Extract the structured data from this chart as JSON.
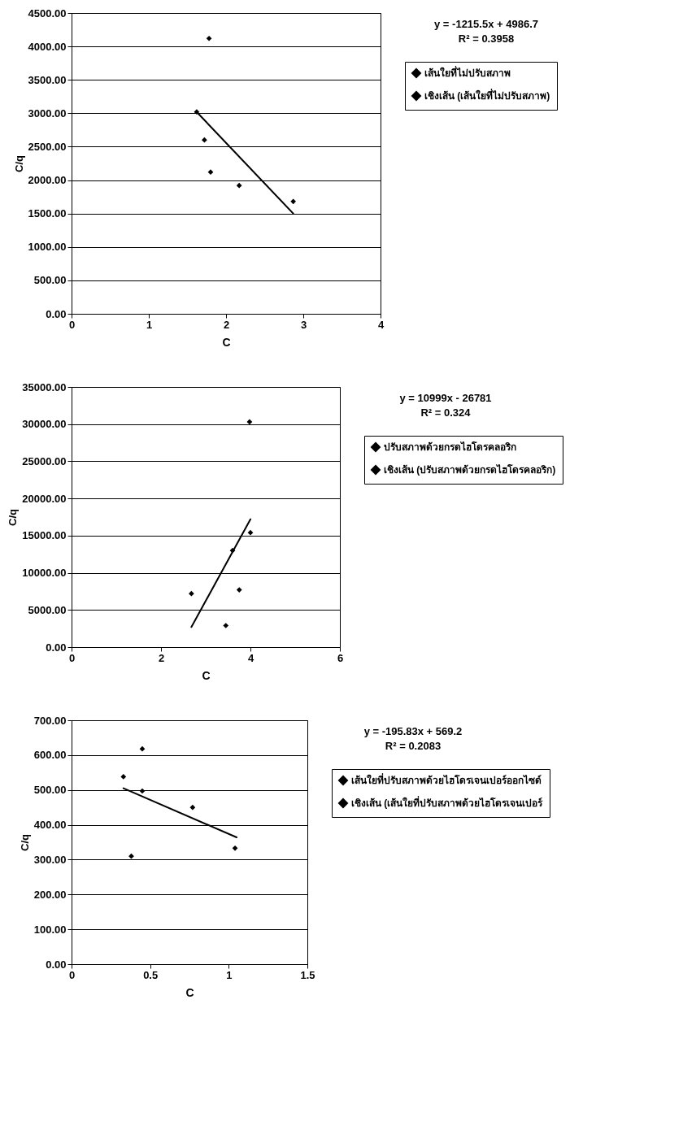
{
  "chart_data": [
    {
      "type": "scatter",
      "xlabel": "C",
      "ylabel": "C/q",
      "xlim": [
        0,
        4
      ],
      "xticks": [
        0,
        1,
        2,
        3,
        4
      ],
      "ylim": [
        0,
        4500
      ],
      "yticks": [
        {
          "value": 0,
          "label": "0.00"
        },
        {
          "value": 500,
          "label": "500.00"
        },
        {
          "value": 1000,
          "label": "1000.00"
        },
        {
          "value": 1500,
          "label": "1500.00"
        },
        {
          "value": 2000,
          "label": "2000.00"
        },
        {
          "value": 2500,
          "label": "2500.00"
        },
        {
          "value": 3000,
          "label": "3000.00"
        },
        {
          "value": 3500,
          "label": "3500.00"
        },
        {
          "value": 4000,
          "label": "4000.00"
        },
        {
          "value": 4500,
          "label": "4500.00"
        }
      ],
      "grid": "y",
      "legend": "right",
      "annotations": [
        "y = -1215.5x + 4986.7",
        "R² = 0.3958"
      ],
      "series": [
        {
          "name": "เส้นใยที่ไม่ปรับสภาพ",
          "color": "#000000",
          "marker": "diamond",
          "x": [
            1.62,
            1.78,
            1.72,
            1.8,
            2.17,
            2.87
          ],
          "values": [
            3020,
            4120,
            2600,
            2120,
            1920,
            1680
          ]
        },
        {
          "name": "เชิงเส้น (เส้นใยที่ไม่ปรับสภาพ)",
          "type": "line",
          "color": "#000000",
          "x": [
            1.62,
            2.87
          ],
          "values": [
            3020,
            1500
          ]
        }
      ]
    },
    {
      "type": "scatter",
      "xlabel": "C",
      "ylabel": "C/q",
      "xlim": [
        0,
        6
      ],
      "xticks": [
        0,
        2,
        4,
        6
      ],
      "ylim": [
        0,
        35000
      ],
      "yticks": [
        {
          "value": 0,
          "label": "0.00"
        },
        {
          "value": 5000,
          "label": "5000.00"
        },
        {
          "value": 10000,
          "label": "10000.00"
        },
        {
          "value": 15000,
          "label": "15000.00"
        },
        {
          "value": 20000,
          "label": "20000.00"
        },
        {
          "value": 25000,
          "label": "25000.00"
        },
        {
          "value": 30000,
          "label": "30000.00"
        },
        {
          "value": 35000,
          "label": "35000.00"
        }
      ],
      "grid": "y",
      "legend": "right",
      "annotations": [
        "y = 10999x - 26781",
        "R² = 0.324"
      ],
      "series": [
        {
          "name": "ปรับสภาพด้วยกรดไฮโดรคลอริก",
          "color": "#000000",
          "marker": "diamond",
          "x": [
            2.68,
            3.45,
            3.6,
            3.75,
            3.98,
            4.0
          ],
          "values": [
            7200,
            2900,
            13000,
            7700,
            30300,
            15400
          ]
        },
        {
          "name": "เชิงเส้น (ปรับสภาพด้วยกรดไฮโดรคลอริก)",
          "type": "line",
          "color": "#000000",
          "x": [
            2.68,
            4.0
          ],
          "values": [
            2700,
            17200
          ]
        }
      ]
    },
    {
      "type": "scatter",
      "xlabel": "C",
      "ylabel": "C/q",
      "xlim": [
        0,
        1.5
      ],
      "xticks": [
        0,
        0.5,
        1,
        1.5
      ],
      "ylim": [
        0,
        700
      ],
      "yticks": [
        {
          "value": 0,
          "label": "0.00"
        },
        {
          "value": 100,
          "label": "100.00"
        },
        {
          "value": 200,
          "label": "200.00"
        },
        {
          "value": 300,
          "label": "300.00"
        },
        {
          "value": 400,
          "label": "400.00"
        },
        {
          "value": 500,
          "label": "500.00"
        },
        {
          "value": 600,
          "label": "600.00"
        },
        {
          "value": 700,
          "label": "700.00"
        }
      ],
      "grid": "y",
      "legend": "right",
      "annotations": [
        "y = -195.83x + 569.2",
        "R² = 0.2083"
      ],
      "series": [
        {
          "name": "เส้นใยที่ปรับสภาพด้วยไฮโดรเจนเปอร์ออกไซด์",
          "color": "#000000",
          "marker": "diamond",
          "x": [
            0.33,
            0.45,
            0.45,
            0.38,
            0.77,
            1.04
          ],
          "values": [
            538,
            618,
            497,
            310,
            450,
            333
          ]
        },
        {
          "name": "เชิงเส้น (เส้นใยที่ปรับสภาพด้วยไฮโดรเจนเปอร์",
          "type": "line",
          "color": "#000000",
          "x": [
            0.33,
            1.05
          ],
          "values": [
            505,
            364
          ]
        }
      ]
    }
  ]
}
